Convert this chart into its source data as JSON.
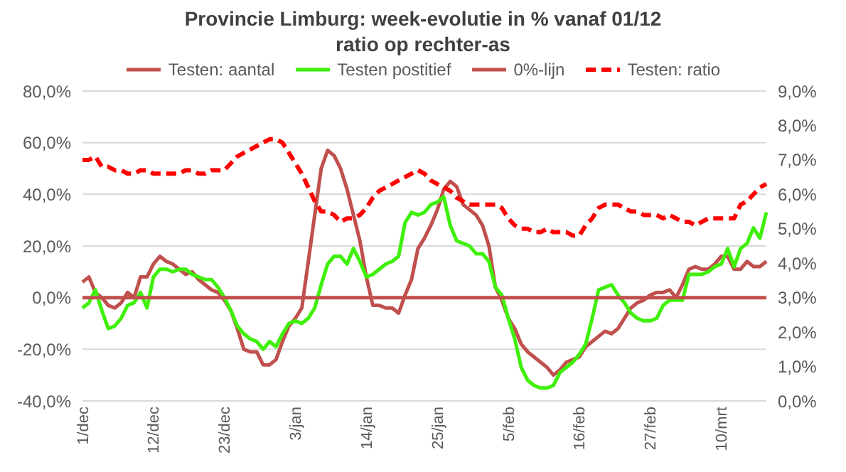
{
  "chart_data": {
    "type": "line",
    "title": "Provincie Limburg: week-evolutie in %  vanaf 01/12",
    "subtitle": "ratio op rechter-as",
    "categories": [
      "1/dec",
      null,
      null,
      null,
      null,
      null,
      null,
      null,
      null,
      null,
      null,
      "12/dec",
      null,
      null,
      null,
      null,
      null,
      null,
      null,
      null,
      null,
      null,
      "23/dec",
      null,
      null,
      null,
      null,
      null,
      null,
      null,
      null,
      null,
      null,
      "3/jan",
      null,
      null,
      null,
      null,
      null,
      null,
      null,
      null,
      null,
      null,
      "14/jan",
      null,
      null,
      null,
      null,
      null,
      null,
      null,
      null,
      null,
      null,
      "25/jan",
      null,
      null,
      null,
      null,
      null,
      null,
      null,
      null,
      null,
      null,
      "5/feb",
      null,
      null,
      null,
      null,
      null,
      null,
      null,
      null,
      null,
      null,
      "16/feb",
      null,
      null,
      null,
      null,
      null,
      null,
      null,
      null,
      null,
      null,
      "27/feb",
      null,
      null,
      null,
      null,
      null,
      null,
      null,
      null,
      null,
      null,
      "10/mrt",
      null,
      null,
      null,
      null,
      null,
      null,
      null
    ],
    "series": [
      {
        "name": "Testen: aantal",
        "color": "#c0504d",
        "values": [
          6,
          8,
          2,
          0,
          -3,
          -4,
          -2,
          2,
          0,
          8,
          8,
          13,
          16,
          14,
          13,
          11,
          9,
          10,
          7,
          5,
          3,
          2,
          -1,
          -5,
          -12,
          -20,
          -21,
          -21,
          -26,
          -26,
          -24,
          -17,
          -11,
          -8,
          -4,
          14,
          32,
          50,
          57,
          55,
          50,
          42,
          32,
          22,
          8,
          -3,
          -3,
          -4,
          -4,
          -6,
          1,
          7,
          19,
          23,
          28,
          34,
          42,
          45,
          43,
          36,
          34,
          32,
          28,
          20,
          4,
          -1,
          -8,
          -12,
          -18,
          -21,
          -23,
          -25,
          -27,
          -30,
          -28,
          -25,
          -24,
          -23,
          -19,
          -17,
          -15,
          -13,
          -14,
          -12,
          -8,
          -4,
          -2,
          -1,
          1,
          2,
          2,
          3,
          0,
          5,
          11,
          12,
          11,
          11,
          13,
          16,
          16,
          11,
          11,
          14,
          12,
          12,
          14
        ]
      },
      {
        "name": "Testen postitief",
        "color": "#3ef00a",
        "values": [
          -4,
          -2,
          3,
          -5,
          -12,
          -11,
          -8,
          -3,
          -2,
          2,
          -4,
          8,
          11,
          11,
          10,
          11,
          11,
          9,
          8,
          7,
          7,
          4,
          0,
          -5,
          -11,
          -14,
          -16,
          -17,
          -20,
          -17,
          -19,
          -14,
          -10,
          -9,
          -10,
          -8,
          -4,
          5,
          13,
          16,
          16,
          13,
          19,
          14,
          8,
          9,
          11,
          13,
          14,
          16,
          29,
          33,
          32,
          33,
          36,
          37,
          39,
          28,
          22,
          21,
          20,
          17,
          17,
          14,
          4,
          1,
          -8,
          -16,
          -27,
          -32,
          -34,
          -35,
          -35,
          -34,
          -29,
          -27,
          -25,
          -22,
          -18,
          -8,
          3,
          4,
          5,
          1,
          -2,
          -6,
          -8,
          -9,
          -9,
          -8,
          -3,
          -1,
          -1,
          -1,
          9,
          9,
          9,
          10,
          12,
          13,
          19,
          12,
          19,
          21,
          27,
          23,
          33
        ]
      },
      {
        "name": "0%-lijn",
        "color": "#c0504d",
        "values": [
          0,
          0,
          0,
          0,
          0,
          0,
          0,
          0,
          0,
          0,
          0,
          0,
          0,
          0,
          0,
          0,
          0,
          0,
          0,
          0,
          0,
          0,
          0,
          0,
          0,
          0,
          0,
          0,
          0,
          0,
          0,
          0,
          0,
          0,
          0,
          0,
          0,
          0,
          0,
          0,
          0,
          0,
          0,
          0,
          0,
          0,
          0,
          0,
          0,
          0,
          0,
          0,
          0,
          0,
          0,
          0,
          0,
          0,
          0,
          0,
          0,
          0,
          0,
          0,
          0,
          0,
          0,
          0,
          0,
          0,
          0,
          0,
          0,
          0,
          0,
          0,
          0,
          0,
          0,
          0,
          0,
          0,
          0,
          0,
          0,
          0,
          0,
          0,
          0,
          0,
          0,
          0,
          0,
          0,
          0,
          0,
          0,
          0,
          0,
          0,
          0,
          0,
          0,
          0,
          0,
          0,
          0
        ]
      },
      {
        "name": "Testen: ratio",
        "color": "#ff0000",
        "axis": "y2",
        "line_style": "dashed",
        "values": [
          7.0,
          7.0,
          7.1,
          6.8,
          6.8,
          6.7,
          6.7,
          6.6,
          6.6,
          6.7,
          6.7,
          6.6,
          6.6,
          6.6,
          6.6,
          6.6,
          6.7,
          6.7,
          6.6,
          6.6,
          6.7,
          6.7,
          6.7,
          6.9,
          7.1,
          7.2,
          7.3,
          7.4,
          7.5,
          7.6,
          7.6,
          7.5,
          7.2,
          6.9,
          6.6,
          6.2,
          5.8,
          5.5,
          5.5,
          5.4,
          5.2,
          5.3,
          5.3,
          5.4,
          5.6,
          5.9,
          6.1,
          6.2,
          6.3,
          6.4,
          6.5,
          6.6,
          6.7,
          6.6,
          6.4,
          6.3,
          6.2,
          6.1,
          5.9,
          5.8,
          5.7,
          5.7,
          5.7,
          5.7,
          5.7,
          5.6,
          5.3,
          5.1,
          5.0,
          5.0,
          4.9,
          4.9,
          5.0,
          4.9,
          4.9,
          4.9,
          4.8,
          4.8,
          5.1,
          5.3,
          5.6,
          5.7,
          5.7,
          5.7,
          5.6,
          5.5,
          5.5,
          5.4,
          5.4,
          5.4,
          5.3,
          5.4,
          5.3,
          5.2,
          5.2,
          5.1,
          5.2,
          5.3,
          5.3,
          5.3,
          5.3,
          5.3,
          5.7,
          5.8,
          6.0,
          6.2,
          6.3
        ]
      }
    ],
    "ylim": [
      -40,
      80
    ],
    "yticks": [
      {
        "value": -40,
        "label": "-40,0%"
      },
      {
        "value": -20,
        "label": "-20,0%"
      },
      {
        "value": 0,
        "label": "0,0%"
      },
      {
        "value": 20,
        "label": "20,0%"
      },
      {
        "value": 40,
        "label": "40,0%"
      },
      {
        "value": 60,
        "label": "60,0%"
      },
      {
        "value": 80,
        "label": "80,0%"
      }
    ],
    "y2lim": [
      0,
      9
    ],
    "y2ticks": [
      {
        "value": 0,
        "label": "0,0%"
      },
      {
        "value": 1,
        "label": "1,0%"
      },
      {
        "value": 2,
        "label": "2,0%"
      },
      {
        "value": 3,
        "label": "3,0%"
      },
      {
        "value": 4,
        "label": "4,0%"
      },
      {
        "value": 5,
        "label": "5,0%"
      },
      {
        "value": 6,
        "label": "6,0%"
      },
      {
        "value": 7,
        "label": "7,0%"
      },
      {
        "value": 8,
        "label": "8,0%"
      },
      {
        "value": 9,
        "label": "9,0%"
      }
    ],
    "grid": "y",
    "legend": "top",
    "marker": "none",
    "line_style": "solid"
  }
}
